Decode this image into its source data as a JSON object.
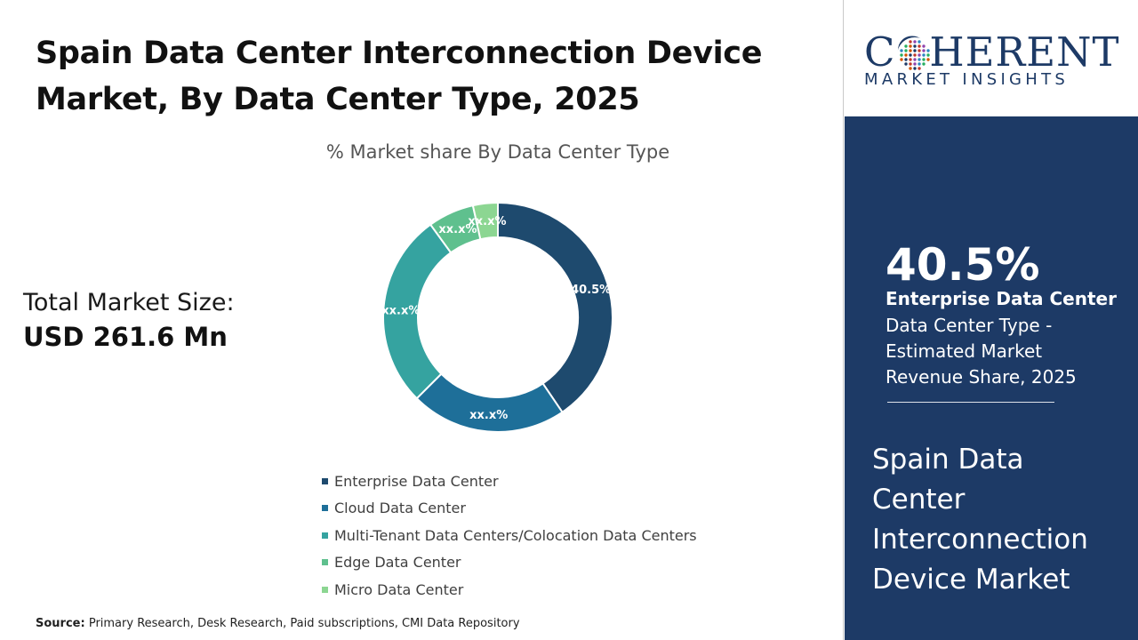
{
  "title": {
    "line1": "Spain Data Center Interconnection Device",
    "line2": "Market, By Data Center Type, 2025"
  },
  "total_market": {
    "label": "Total Market Size:",
    "value": "USD 261.6 Mn"
  },
  "source": {
    "label": "Source:",
    "text": "Primary Research, Desk Research, Paid subscriptions, CMI Data Repository"
  },
  "logo": {
    "main": "COHERENT",
    "sub": "MARKET INSIGHTS"
  },
  "highlight": {
    "value": "40.5%",
    "segment": "Enterprise Data Center",
    "description": "Data Center Type - Estimated Market Revenue Share, 2025"
  },
  "market_name": "Spain Data Center Interconnection Device Market",
  "colors": {
    "panel": "#1d3a66",
    "enterprise": "#1e4a6e",
    "cloud": "#1e6f99",
    "multi_tenant": "#35a3a0",
    "edge": "#5fc08e",
    "micro": "#8cd692"
  },
  "chart_data": {
    "type": "pie",
    "title": "% Market share By Data Center Type",
    "legend_position": "bottom",
    "series": [
      {
        "name": "Enterprise Data Center",
        "value": 40.5,
        "label": "40.5%",
        "color": "#1e4a6e"
      },
      {
        "name": "Cloud Data Center",
        "value": 22.0,
        "label": "xx.x%",
        "color": "#1e6f99"
      },
      {
        "name": "Multi-Tenant Data Centers/Colocation Data Centers",
        "value": 27.5,
        "label": "xx.x%",
        "color": "#35a3a0"
      },
      {
        "name": "Edge Data Center",
        "value": 6.5,
        "label": "xx.x%",
        "color": "#5fc08e"
      },
      {
        "name": "Micro Data Center",
        "value": 3.5,
        "label": "xx.x%",
        "color": "#8cd692"
      }
    ]
  }
}
